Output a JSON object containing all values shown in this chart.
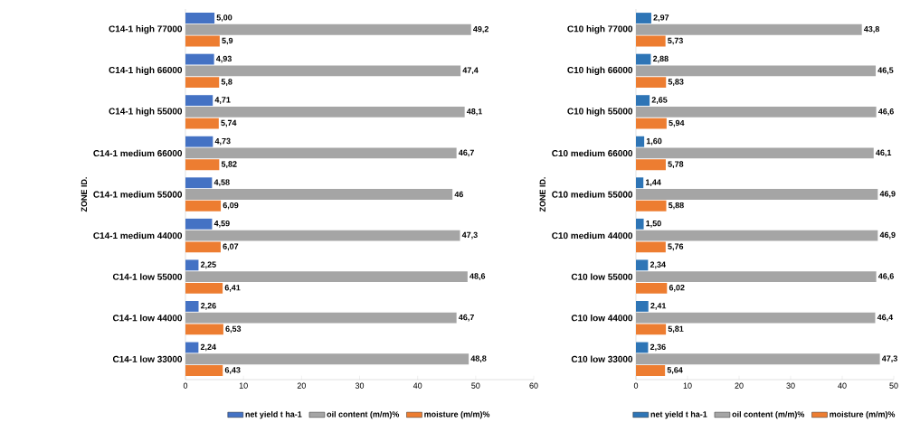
{
  "chart_data": [
    {
      "type": "bar",
      "orientation": "horizontal",
      "ylabel": "ZONE ID.",
      "categories": [
        "C14-1 high 77000",
        "C14-1 high 66000",
        "C14-1 high 55000",
        "C14-1 medium 66000",
        "C14-1 medium 55000",
        "C14-1 medium 44000",
        "C14-1 low 55000",
        "C14-1 low 44000",
        "C14-1 low 33000"
      ],
      "series": [
        {
          "name": "net yield t ha-1",
          "color": "#4472c4",
          "values": [
            5.0,
            4.93,
            4.71,
            4.73,
            4.58,
            4.59,
            2.25,
            2.26,
            2.24
          ],
          "value_labels": [
            "5,00",
            "4,93",
            "4,71",
            "4,73",
            "4,58",
            "4,59",
            "2,25",
            "2,26",
            "2,24"
          ]
        },
        {
          "name": "oil content (m/m)%",
          "color": "#a5a5a5",
          "values": [
            49.2,
            47.4,
            48.1,
            46.7,
            46,
            47.3,
            48.6,
            46.7,
            48.8
          ],
          "value_labels": [
            "49,2",
            "47,4",
            "48,1",
            "46,7",
            "46",
            "47,3",
            "48,6",
            "46,7",
            "48,8"
          ]
        },
        {
          "name": "moisture (m/m)%",
          "color": "#ed7d31",
          "values": [
            5.9,
            5.8,
            5.74,
            5.82,
            6.09,
            6.07,
            6.41,
            6.53,
            6.43
          ],
          "value_labels": [
            "5,9",
            "5,8",
            "5,74",
            "5,82",
            "6,09",
            "6,07",
            "6,41",
            "6,53",
            "6,43"
          ]
        }
      ],
      "xlim": [
        0,
        60
      ],
      "xticks": [
        0,
        10,
        20,
        30,
        40,
        50,
        60
      ],
      "legend": "bottom"
    },
    {
      "type": "bar",
      "orientation": "horizontal",
      "ylabel": "ZONE ID.",
      "categories": [
        "C10 high 77000",
        "C10 high 66000",
        "C10 high 55000",
        "C10 medium 66000",
        "C10 medium 55000",
        "C10 medium 44000",
        "C10 low 55000",
        "C10 low 44000",
        "C10 low 33000"
      ],
      "series": [
        {
          "name": "net yield t ha-1",
          "color": "#2e75b6",
          "values": [
            2.97,
            2.88,
            2.65,
            1.6,
            1.44,
            1.5,
            2.34,
            2.41,
            2.36
          ],
          "value_labels": [
            "2,97",
            "2,88",
            "2,65",
            "1,60",
            "1,44",
            "1,50",
            "2,34",
            "2,41",
            "2,36"
          ]
        },
        {
          "name": "oil content (m/m)%",
          "color": "#a5a5a5",
          "values": [
            43.8,
            46.5,
            46.6,
            46.1,
            46.9,
            46.9,
            46.6,
            46.4,
            47.3
          ],
          "value_labels": [
            "43,8",
            "46,5",
            "46,6",
            "46,1",
            "46,9",
            "46,9",
            "46,6",
            "46,4",
            "47,3"
          ]
        },
        {
          "name": "moisture (m/m)%",
          "color": "#ed7d31",
          "values": [
            5.73,
            5.83,
            5.94,
            5.78,
            5.88,
            5.76,
            6.02,
            5.81,
            5.64
          ],
          "value_labels": [
            "5,73",
            "5,83",
            "5,94",
            "5,78",
            "5,88",
            "5,76",
            "6,02",
            "5,81",
            "5,64"
          ]
        }
      ],
      "xlim": [
        0,
        50
      ],
      "xticks": [
        0,
        10,
        20,
        30,
        40,
        50
      ],
      "legend": "bottom"
    }
  ]
}
